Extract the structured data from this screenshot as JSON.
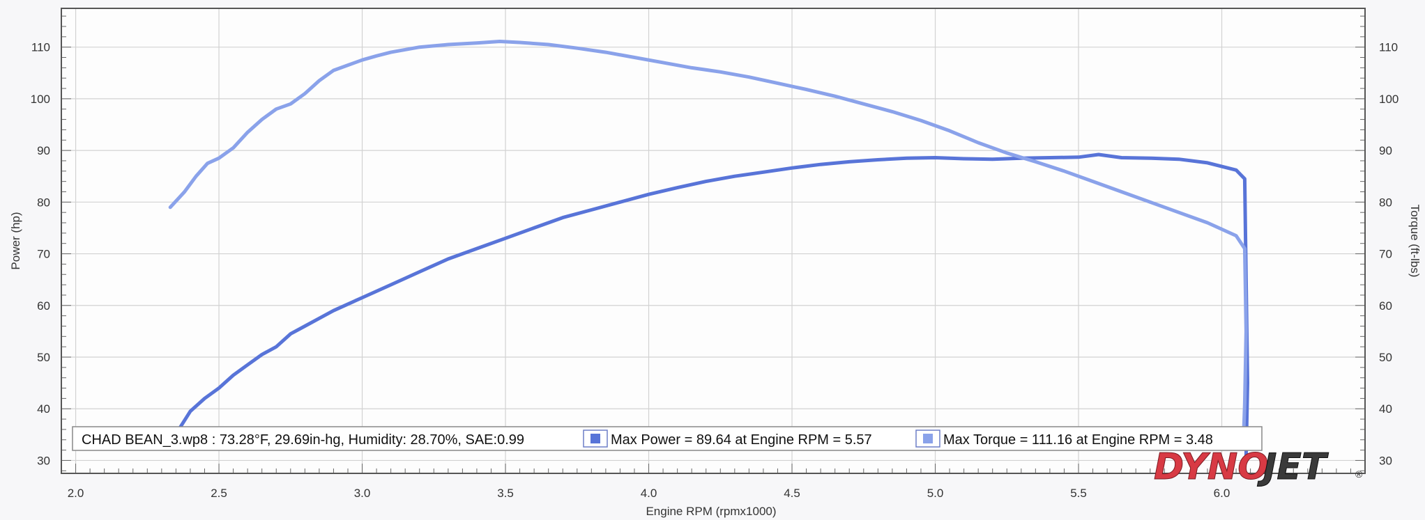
{
  "chart_data": {
    "type": "line",
    "title": "",
    "xlabel": "Engine RPM (rpmx1000)",
    "ylabel_left": "Power (hp)",
    "ylabel_right": "Torque (ft-lbs)",
    "xlim": [
      1.95,
      6.5
    ],
    "ylim": [
      27.5,
      117.5
    ],
    "x_ticks": [
      2.0,
      2.5,
      3.0,
      3.5,
      4.0,
      4.5,
      5.0,
      5.5,
      6.0
    ],
    "x_tick_labels": [
      "2.0",
      "2.5",
      "3.0",
      "3.5",
      "4.0",
      "4.5",
      "5.0",
      "5.5",
      "6.0"
    ],
    "y_ticks": [
      30,
      40,
      50,
      60,
      70,
      80,
      90,
      100,
      110
    ],
    "y_tick_labels": [
      "30",
      "40",
      "50",
      "60",
      "70",
      "80",
      "90",
      "100",
      "110"
    ],
    "grid": true,
    "series": [
      {
        "name": "Max Power = 89.64 at Engine RPM = 5.57",
        "axis": "left",
        "color": "#5874d8",
        "points": [
          [
            2.36,
            36.0
          ],
          [
            2.4,
            39.5
          ],
          [
            2.45,
            42.0
          ],
          [
            2.5,
            44.0
          ],
          [
            2.55,
            46.5
          ],
          [
            2.6,
            48.5
          ],
          [
            2.65,
            50.5
          ],
          [
            2.7,
            52.0
          ],
          [
            2.75,
            54.5
          ],
          [
            2.8,
            56.0
          ],
          [
            2.85,
            57.5
          ],
          [
            2.9,
            59.0
          ],
          [
            3.0,
            61.5
          ],
          [
            3.1,
            64.0
          ],
          [
            3.2,
            66.5
          ],
          [
            3.3,
            69.0
          ],
          [
            3.4,
            71.0
          ],
          [
            3.5,
            73.0
          ],
          [
            3.6,
            75.0
          ],
          [
            3.7,
            77.0
          ],
          [
            3.8,
            78.5
          ],
          [
            3.9,
            80.0
          ],
          [
            4.0,
            81.5
          ],
          [
            4.1,
            82.8
          ],
          [
            4.2,
            84.0
          ],
          [
            4.3,
            85.0
          ],
          [
            4.4,
            85.8
          ],
          [
            4.5,
            86.6
          ],
          [
            4.6,
            87.3
          ],
          [
            4.7,
            87.8
          ],
          [
            4.8,
            88.2
          ],
          [
            4.9,
            88.5
          ],
          [
            5.0,
            88.6
          ],
          [
            5.1,
            88.4
          ],
          [
            5.2,
            88.3
          ],
          [
            5.3,
            88.5
          ],
          [
            5.4,
            88.6
          ],
          [
            5.5,
            88.7
          ],
          [
            5.57,
            89.2
          ],
          [
            5.65,
            88.6
          ],
          [
            5.75,
            88.5
          ],
          [
            5.85,
            88.3
          ],
          [
            5.95,
            87.6
          ],
          [
            6.05,
            86.2
          ],
          [
            6.08,
            84.5
          ],
          [
            6.085,
            65.0
          ],
          [
            6.09,
            45.0
          ],
          [
            6.085,
            31.0
          ]
        ]
      },
      {
        "name": "Max Torque = 111.16 at Engine RPM = 3.48",
        "axis": "right",
        "color": "#8aa2ea",
        "points": [
          [
            2.33,
            79.0
          ],
          [
            2.38,
            82.0
          ],
          [
            2.42,
            85.0
          ],
          [
            2.46,
            87.5
          ],
          [
            2.5,
            88.5
          ],
          [
            2.55,
            90.5
          ],
          [
            2.6,
            93.5
          ],
          [
            2.65,
            96.0
          ],
          [
            2.7,
            98.0
          ],
          [
            2.75,
            99.0
          ],
          [
            2.8,
            101.0
          ],
          [
            2.85,
            103.5
          ],
          [
            2.9,
            105.5
          ],
          [
            2.95,
            106.5
          ],
          [
            3.0,
            107.5
          ],
          [
            3.05,
            108.3
          ],
          [
            3.1,
            109.0
          ],
          [
            3.2,
            110.0
          ],
          [
            3.3,
            110.5
          ],
          [
            3.4,
            110.8
          ],
          [
            3.48,
            111.1
          ],
          [
            3.55,
            110.9
          ],
          [
            3.65,
            110.5
          ],
          [
            3.75,
            109.8
          ],
          [
            3.85,
            109.0
          ],
          [
            3.95,
            108.0
          ],
          [
            4.05,
            107.0
          ],
          [
            4.15,
            106.0
          ],
          [
            4.25,
            105.2
          ],
          [
            4.35,
            104.2
          ],
          [
            4.45,
            103.0
          ],
          [
            4.55,
            101.8
          ],
          [
            4.65,
            100.5
          ],
          [
            4.75,
            99.0
          ],
          [
            4.85,
            97.5
          ],
          [
            4.95,
            95.8
          ],
          [
            5.05,
            93.8
          ],
          [
            5.15,
            91.5
          ],
          [
            5.25,
            89.5
          ],
          [
            5.35,
            87.8
          ],
          [
            5.45,
            86.0
          ],
          [
            5.55,
            84.0
          ],
          [
            5.65,
            82.0
          ],
          [
            5.75,
            80.0
          ],
          [
            5.85,
            78.0
          ],
          [
            5.95,
            76.0
          ],
          [
            6.05,
            73.5
          ],
          [
            6.08,
            71.0
          ],
          [
            6.085,
            55.0
          ],
          [
            6.08,
            41.0
          ],
          [
            6.075,
            33.0
          ]
        ]
      }
    ],
    "legend": {
      "placement": "bottom",
      "run_text": "CHAD BEAN_3.wp8 : 73.28°F, 29.69in-hg, Humidity: 28.70%, SAE:0.99",
      "entries": [
        {
          "label": "Max Power = 89.64 at Engine RPM = 5.57",
          "color": "#5874d8"
        },
        {
          "label": "Max Torque = 111.16 at Engine RPM = 3.48",
          "color": "#8aa2ea"
        }
      ]
    },
    "logo": {
      "text_a": "DYNO",
      "text_b": "JET",
      "mark": "®"
    }
  }
}
